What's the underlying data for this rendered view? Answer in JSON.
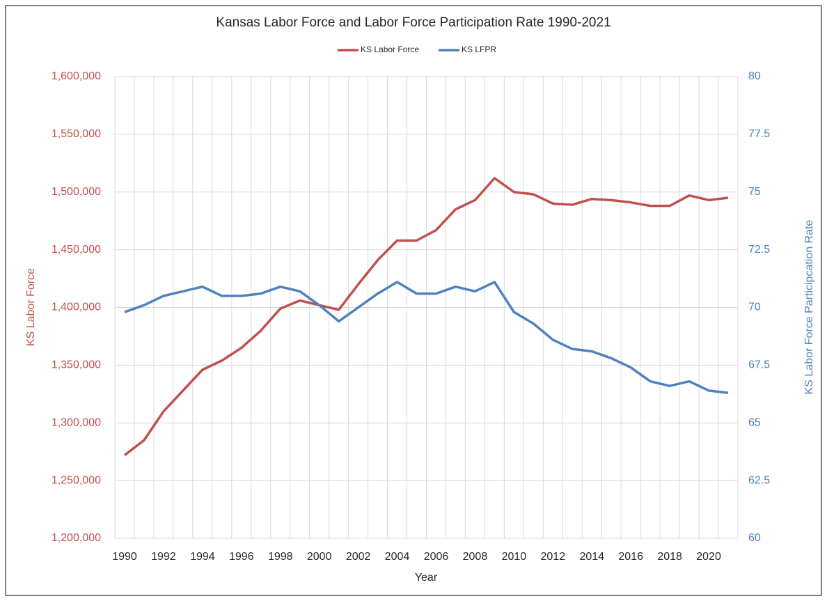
{
  "chart_data": {
    "type": "line",
    "title": "Kansas Labor Force and Labor Force Participation Rate 1990-2021",
    "x_label": "Year",
    "y_label": "KS Labor Force",
    "y2_label": "KS Labor Force Participcation Rate",
    "x": [
      1990,
      1991,
      1992,
      1993,
      1994,
      1995,
      1996,
      1997,
      1998,
      1999,
      2000,
      2001,
      2002,
      2003,
      2004,
      2005,
      2006,
      2007,
      2008,
      2009,
      2010,
      2011,
      2012,
      2013,
      2014,
      2015,
      2016,
      2017,
      2018,
      2019,
      2020,
      2021
    ],
    "xlim": [
      1989.5,
      2021.5
    ],
    "xticks": [
      1990,
      1992,
      1994,
      1996,
      1998,
      2000,
      2002,
      2004,
      2006,
      2008,
      2010,
      2012,
      2014,
      2016,
      2018,
      2020
    ],
    "ylim": [
      1200000,
      1600000
    ],
    "yticks": [
      {
        "value": 1200000,
        "label": "1,200,000"
      },
      {
        "value": 1250000,
        "label": "1,250,000"
      },
      {
        "value": 1300000,
        "label": "1,300,000"
      },
      {
        "value": 1350000,
        "label": "1,350,000"
      },
      {
        "value": 1400000,
        "label": "1,400,000"
      },
      {
        "value": 1450000,
        "label": "1,450,000"
      },
      {
        "value": 1500000,
        "label": "1,500,000"
      },
      {
        "value": 1550000,
        "label": "1,550,000"
      },
      {
        "value": 1600000,
        "label": "1,600,000"
      }
    ],
    "y2lim": [
      60,
      80
    ],
    "y2ticks": [
      60,
      62.5,
      65,
      67.5,
      70,
      72.5,
      75,
      77.5,
      80
    ],
    "grid": true,
    "legend": "top",
    "series": [
      {
        "name": "KS Labor Force",
        "color": "#c0504d",
        "axis": "y",
        "values": [
          1272000,
          1285000,
          1310000,
          1328000,
          1346000,
          1354000,
          1365000,
          1380000,
          1399000,
          1406000,
          1402000,
          1398000,
          1420000,
          1441000,
          1458000,
          1458000,
          1467000,
          1485000,
          1493000,
          1512000,
          1500000,
          1498000,
          1490000,
          1489000,
          1494000,
          1493000,
          1491000,
          1488000,
          1488000,
          1497000,
          1493000,
          1495000
        ]
      },
      {
        "name": "KS LFPR",
        "color": "#4f81bd",
        "axis": "y2",
        "values": [
          69.8,
          70.1,
          70.5,
          70.7,
          70.9,
          70.5,
          70.5,
          70.6,
          70.9,
          70.7,
          70.1,
          69.4,
          70.0,
          70.6,
          71.1,
          70.6,
          70.6,
          70.9,
          70.7,
          71.1,
          69.8,
          69.3,
          68.6,
          68.2,
          68.1,
          67.8,
          67.4,
          66.8,
          66.6,
          66.8,
          66.4,
          66.3
        ]
      }
    ]
  }
}
